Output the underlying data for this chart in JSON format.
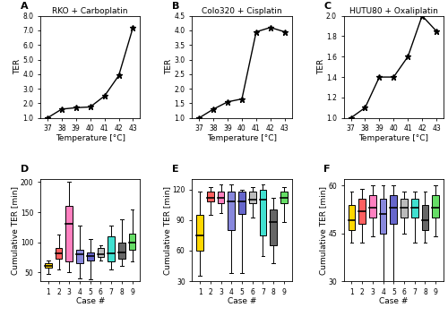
{
  "line_A": {
    "title": "RKO + Carboplatin",
    "x": [
      37,
      38,
      39,
      40,
      41,
      42,
      43
    ],
    "y": [
      1.0,
      1.6,
      1.7,
      1.75,
      2.5,
      3.9,
      7.2
    ],
    "ylabel": "TER",
    "xlabel": "Temperature [°C]",
    "ylim": [
      1.0,
      8.0
    ],
    "yticks": [
      1.0,
      2.0,
      3.0,
      4.0,
      5.0,
      6.0,
      7.0,
      8.0
    ]
  },
  "line_B": {
    "title": "Colo320 + Cisplatin",
    "x": [
      37,
      38,
      39,
      40,
      41,
      42,
      43
    ],
    "y": [
      1.0,
      1.3,
      1.55,
      1.65,
      3.95,
      4.1,
      3.95
    ],
    "ylabel": "TER",
    "xlabel": "Temperature [°C]",
    "ylim": [
      1.0,
      4.5
    ],
    "yticks": [
      1.0,
      1.5,
      2.0,
      2.5,
      3.0,
      3.5,
      4.0,
      4.5
    ]
  },
  "line_C": {
    "title": "HUTU80 + Oxaliplatin",
    "x": [
      37,
      38,
      39,
      40,
      41,
      42,
      43
    ],
    "y": [
      1.0,
      1.1,
      1.4,
      1.4,
      1.6,
      2.0,
      1.85
    ],
    "ylabel": "TER",
    "xlabel": "Temperature [°C]",
    "ylim": [
      1.0,
      2.0
    ],
    "yticks": [
      1.0,
      1.2,
      1.4,
      1.6,
      1.8,
      2.0
    ]
  },
  "box_colors": [
    "#FFD700",
    "#FF6060",
    "#FF80C0",
    "#8888DD",
    "#6666CC",
    "#BBBBBB",
    "#40E0D0",
    "#666666",
    "#66DD66"
  ],
  "box_D": {
    "label": "D",
    "ylabel": "Cumulative TER [min]",
    "xlabel": "Case #",
    "ylim": [
      35,
      205
    ],
    "yticks": [
      50,
      100,
      150,
      200
    ],
    "cases": [
      {
        "q10": 47,
        "q25": 57,
        "median": 60,
        "q75": 65,
        "q90": 70
      },
      {
        "q10": 55,
        "q25": 72,
        "median": 82,
        "q75": 90,
        "q90": 113
      },
      {
        "q10": 50,
        "q25": 68,
        "median": 130,
        "q75": 160,
        "q90": 200
      },
      {
        "q10": 40,
        "q25": 65,
        "median": 80,
        "q75": 88,
        "q90": 128
      },
      {
        "q10": 38,
        "q25": 70,
        "median": 77,
        "q75": 83,
        "q90": 105
      },
      {
        "q10": 70,
        "q25": 75,
        "median": 80,
        "q75": 90,
        "q90": 95
      },
      {
        "q10": 55,
        "q25": 68,
        "median": 82,
        "q75": 110,
        "q90": 128
      },
      {
        "q10": 60,
        "q25": 72,
        "median": 83,
        "q75": 100,
        "q90": 138
      },
      {
        "q10": 68,
        "q25": 88,
        "median": 100,
        "q75": 115,
        "q90": 155
      }
    ]
  },
  "box_E": {
    "label": "E",
    "ylabel": "Cumulative TER [min]",
    "xlabel": "Case #",
    "ylim": [
      30,
      130
    ],
    "yticks": [
      30,
      60,
      90,
      120
    ],
    "cases": [
      {
        "q10": 35,
        "q25": 60,
        "median": 75,
        "q75": 95,
        "q90": 118
      },
      {
        "q10": 95,
        "q25": 108,
        "median": 112,
        "q75": 118,
        "q90": 122
      },
      {
        "q10": 97,
        "q25": 106,
        "median": 112,
        "q75": 118,
        "q90": 125
      },
      {
        "q10": 38,
        "q25": 80,
        "median": 108,
        "q75": 118,
        "q90": 125
      },
      {
        "q10": 38,
        "q25": 96,
        "median": 108,
        "q75": 118,
        "q90": 120
      },
      {
        "q10": 92,
        "q25": 106,
        "median": 110,
        "q75": 118,
        "q90": 122
      },
      {
        "q10": 55,
        "q25": 75,
        "median": 110,
        "q75": 120,
        "q90": 125
      },
      {
        "q10": 48,
        "q25": 65,
        "median": 88,
        "q75": 100,
        "q90": 112
      },
      {
        "q10": 88,
        "q25": 106,
        "median": 112,
        "q75": 118,
        "q90": 122
      }
    ]
  },
  "box_F": {
    "label": "F",
    "ylabel": "Cumulative TER [min]",
    "xlabel": "Case #",
    "ylim": [
      30,
      62
    ],
    "yticks": [
      30,
      45,
      60
    ],
    "cases": [
      {
        "q10": 42,
        "q25": 46,
        "median": 49,
        "q75": 54,
        "q90": 58
      },
      {
        "q10": 42,
        "q25": 48,
        "median": 52,
        "q75": 56,
        "q90": 59
      },
      {
        "q10": 44,
        "q25": 50,
        "median": 53,
        "q75": 57,
        "q90": 60
      },
      {
        "q10": 30,
        "q25": 45,
        "median": 51,
        "q75": 56,
        "q90": 60
      },
      {
        "q10": 30,
        "q25": 48,
        "median": 53,
        "q75": 57,
        "q90": 60
      },
      {
        "q10": 45,
        "q25": 50,
        "median": 53,
        "q75": 56,
        "q90": 58
      },
      {
        "q10": 42,
        "q25": 50,
        "median": 53,
        "q75": 56,
        "q90": 58
      },
      {
        "q10": 42,
        "q25": 46,
        "median": 49,
        "q75": 54,
        "q90": 58
      },
      {
        "q10": 44,
        "q25": 50,
        "median": 53,
        "q75": 57,
        "q90": 60
      }
    ]
  }
}
